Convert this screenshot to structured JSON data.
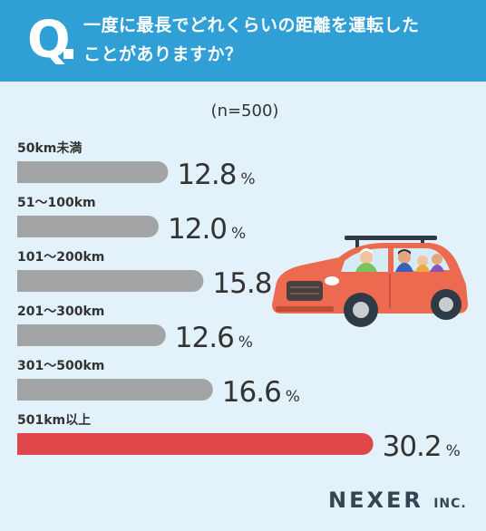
{
  "header": {
    "q_mark": "Q",
    "question_line1": "一度に最長でどれくらいの距離を運転した",
    "question_line2": "ことがありますか？"
  },
  "sample_label": "(n=500)",
  "chart_data": {
    "type": "bar",
    "orientation": "horizontal",
    "categories": [
      "50km未満",
      "51～100km",
      "101～200km",
      "201～300km",
      "301～500km",
      "501km以上"
    ],
    "values": [
      12.8,
      12.0,
      15.8,
      12.6,
      16.6,
      30.2
    ],
    "value_labels": [
      "12.8",
      "12.0",
      "15.8",
      "12.6",
      "16.6",
      "30.2"
    ],
    "unit": "%",
    "highlight_index": 5,
    "colors": {
      "bar": "#a3a4a6",
      "highlight": "#e0474a",
      "text": "#333333"
    }
  },
  "logo": {
    "main": "NEXER",
    "suffix": "INC."
  },
  "colors": {
    "header": "#2f9fd6",
    "background": "#e3f2fa"
  }
}
